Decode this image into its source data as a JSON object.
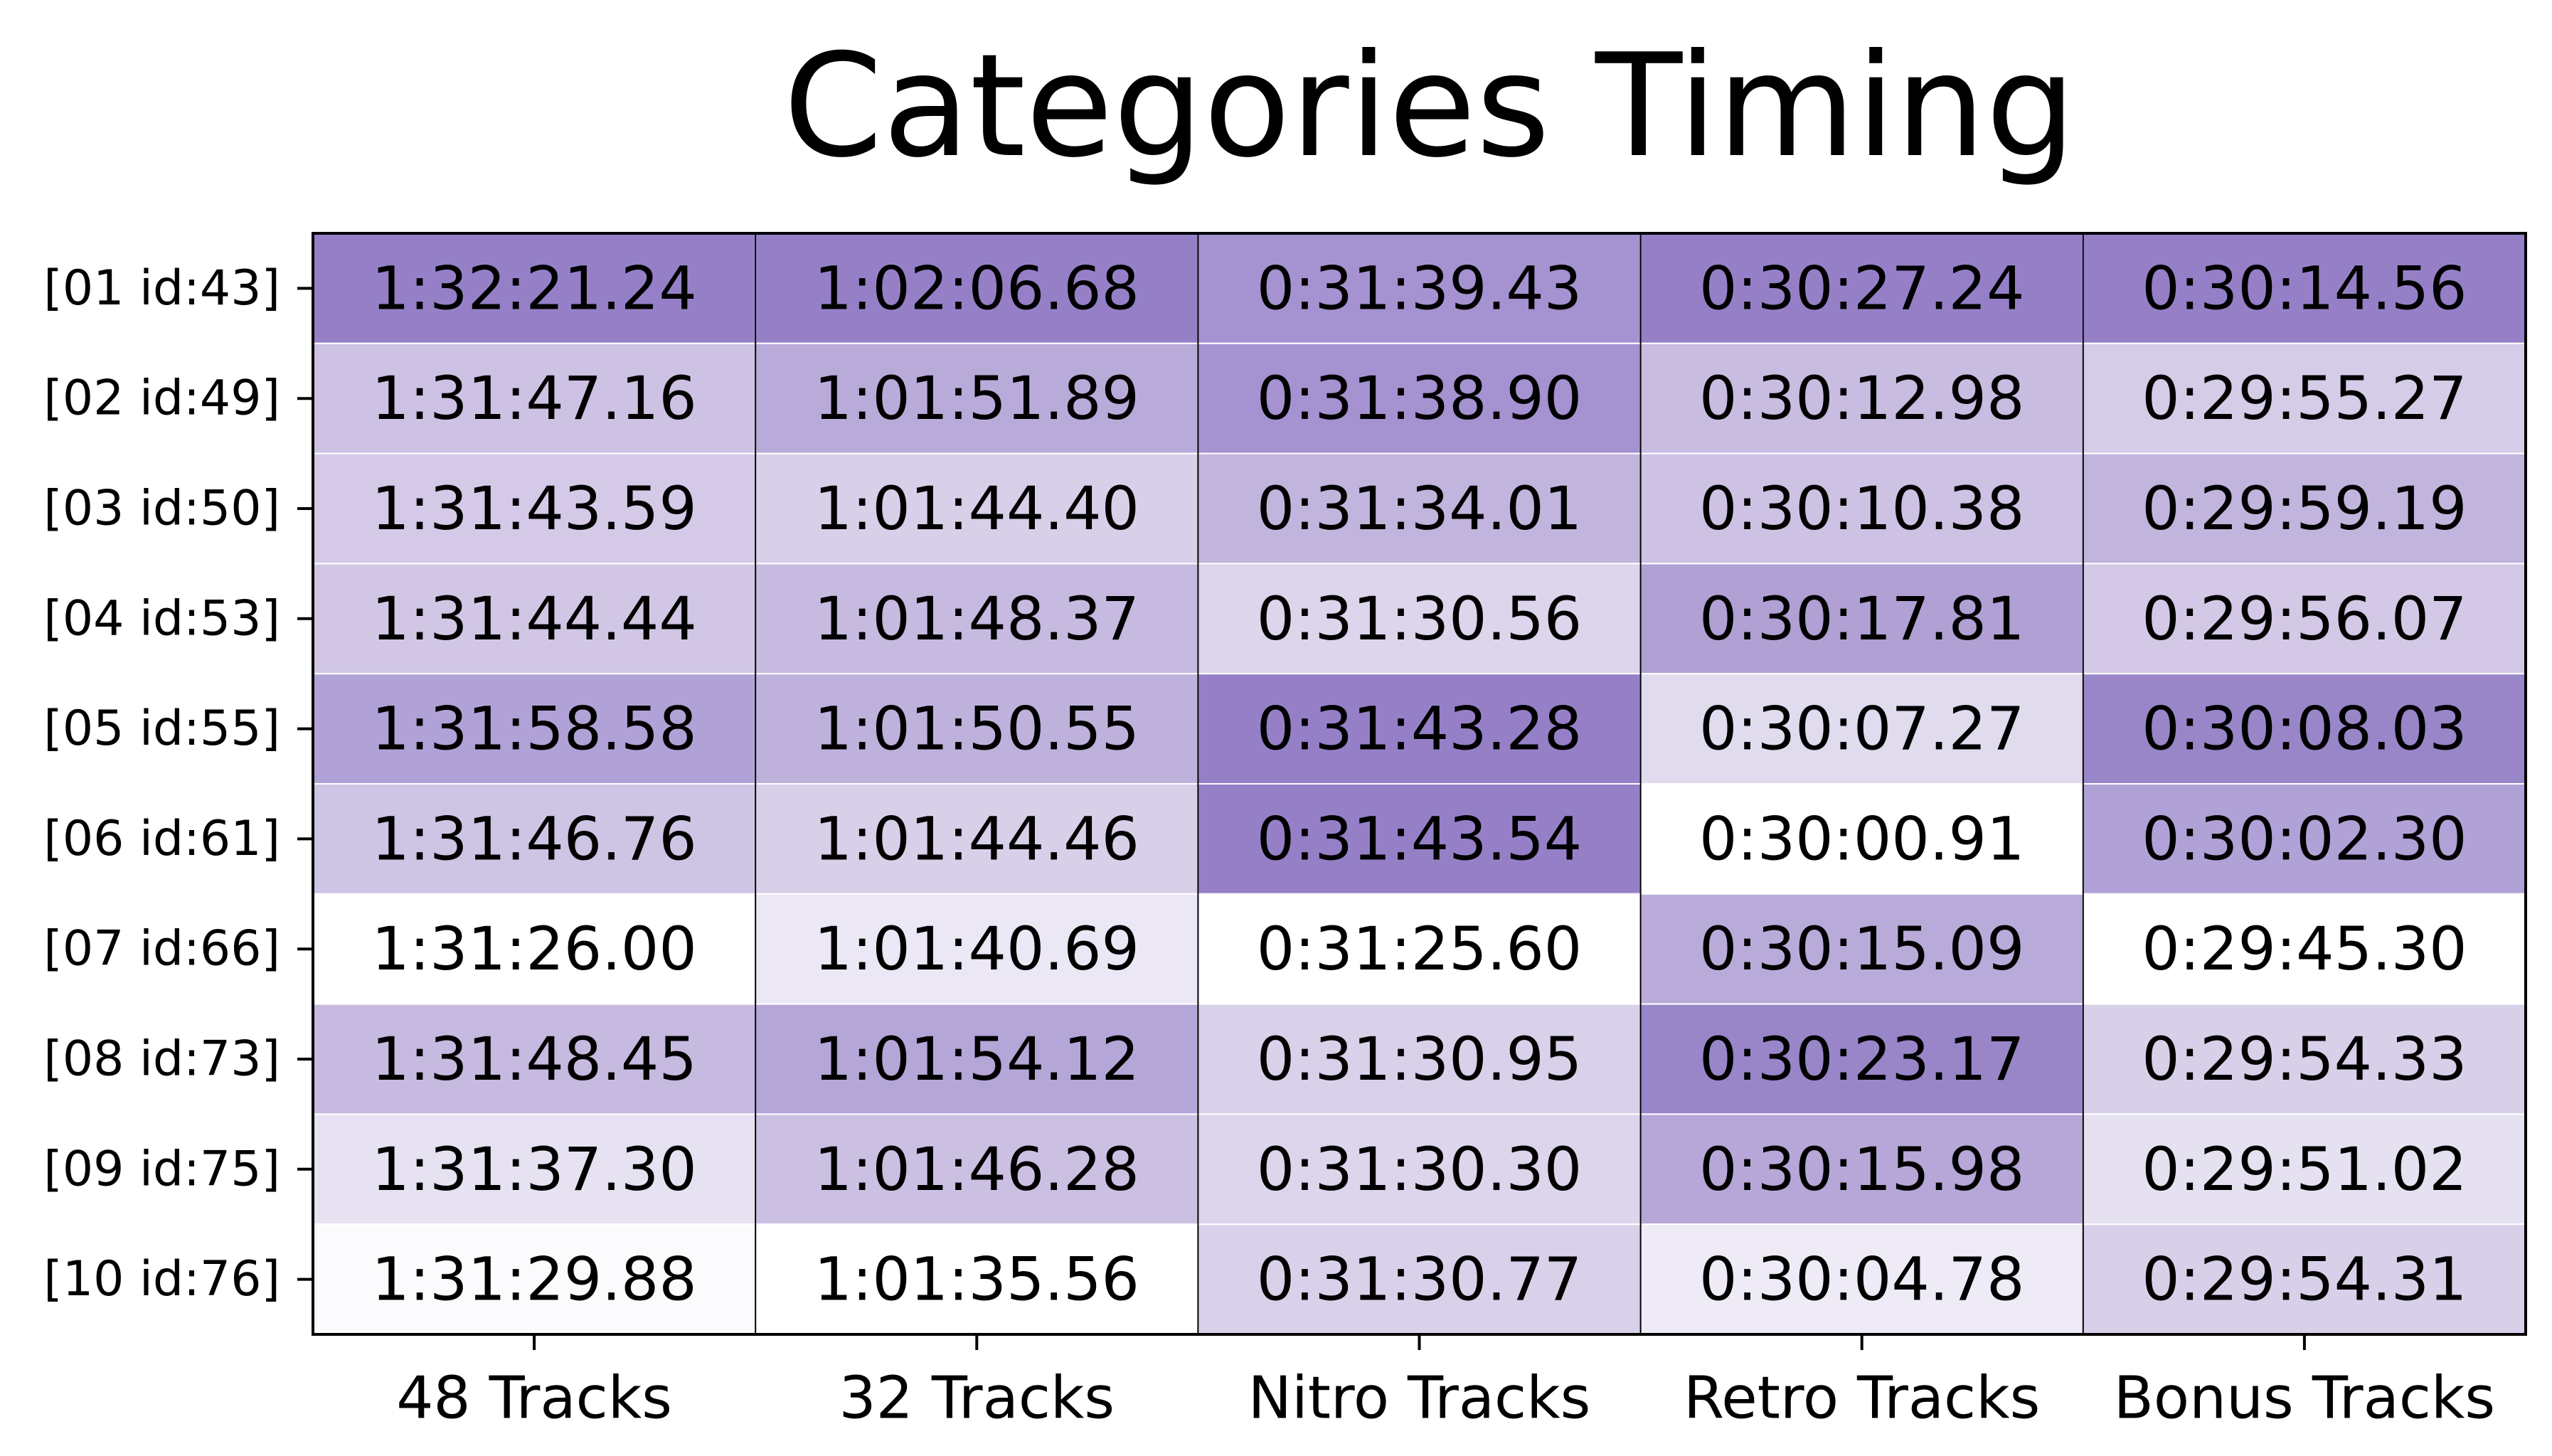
{
  "chart_data": {
    "type": "heatmap",
    "title": "Categories Timing",
    "columns": [
      "48 Tracks",
      "32 Tracks",
      "Nitro Tracks",
      "Retro Tracks",
      "Bonus Tracks"
    ],
    "rows": [
      "[01 id:43]",
      "[02 id:49]",
      "[03 id:50]",
      "[04 id:53]",
      "[05 id:55]",
      "[06 id:61]",
      "[07 id:66]",
      "[08 id:73]",
      "[09 id:75]",
      "[10 id:76]"
    ],
    "values": [
      [
        "1:32:21.24",
        "1:02:06.68",
        "0:31:39.43",
        "0:30:27.24",
        "0:30:14.56"
      ],
      [
        "1:31:47.16",
        "1:01:51.89",
        "0:31:38.90",
        "0:30:12.98",
        "0:29:55.27"
      ],
      [
        "1:31:43.59",
        "1:01:44.40",
        "0:31:34.01",
        "0:30:10.38",
        "0:29:59.19"
      ],
      [
        "1:31:44.44",
        "1:01:48.37",
        "0:31:30.56",
        "0:30:17.81",
        "0:29:56.07"
      ],
      [
        "1:31:58.58",
        "1:01:50.55",
        "0:31:43.28",
        "0:30:07.27",
        "0:30:08.03"
      ],
      [
        "1:31:46.76",
        "1:01:44.46",
        "0:31:43.54",
        "0:30:00.91",
        "0:30:02.30"
      ],
      [
        "1:31:26.00",
        "1:01:40.69",
        "0:31:25.60",
        "0:30:15.09",
        "0:29:45.30"
      ],
      [
        "1:31:48.45",
        "1:01:54.12",
        "0:31:30.95",
        "0:30:23.17",
        "0:29:54.33"
      ],
      [
        "1:31:37.30",
        "1:01:46.28",
        "0:31:30.30",
        "0:30:15.98",
        "0:29:51.02"
      ],
      [
        "1:31:29.88",
        "1:01:35.56",
        "0:31:30.77",
        "0:30:04.78",
        "0:29:54.31"
      ]
    ],
    "colors": [
      [
        "#9580c8",
        "#9580c8",
        "#a592d0",
        "#9580c8",
        "#9580c8"
      ],
      [
        "#cdc2e3",
        "#b9abd9",
        "#a592d0",
        "#c8bce1",
        "#d5cce8"
      ],
      [
        "#d4cae7",
        "#d8d0e9",
        "#c1b5dd",
        "#cdc2e3",
        "#c1b5dd"
      ],
      [
        "#d1c7e5",
        "#c6bae0",
        "#dcd5eb",
        "#b0a0d4",
        "#d3c9e6"
      ],
      [
        "#b0a2d6",
        "#beb2dc",
        "#9580c8",
        "#e1dbee",
        "#9886c9"
      ],
      [
        "#cec4e4",
        "#d8d0e9",
        "#9580c8",
        "#ffffff",
        "#b0a2d6"
      ],
      [
        "#ffffff",
        "#ebe7f4",
        "#ffffff",
        "#b9abd9",
        "#ffffff"
      ],
      [
        "#c6bae0",
        "#b5a6d8",
        "#d9d1ea",
        "#9886c9",
        "#d8d0e9"
      ],
      [
        "#e7e2f2",
        "#cbc0e2",
        "#dcd5eb",
        "#b6a7d8",
        "#e6e1f1"
      ],
      [
        "#fbfbfd",
        "#ffffff",
        "#d9d1ea",
        "#eeeaf6",
        "#d8d0e9"
      ]
    ],
    "grid": false,
    "colormap": "Purples"
  }
}
